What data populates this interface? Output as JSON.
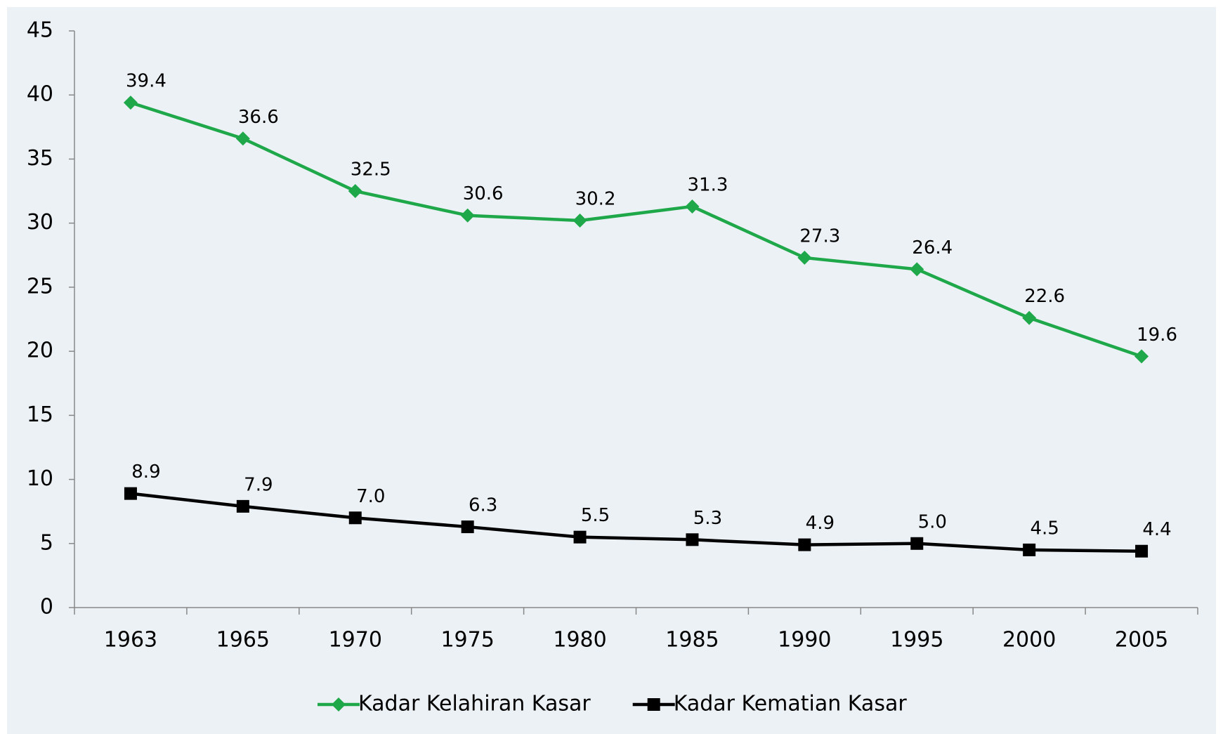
{
  "chart_data": {
    "type": "line",
    "categories": [
      "1963",
      "1965",
      "1970",
      "1975",
      "1980",
      "1985",
      "1990",
      "1995",
      "2000",
      "2005"
    ],
    "series": [
      {
        "name": "Kadar Kelahiran Kasar",
        "color": "#1ea84a",
        "marker": "diamond",
        "values": [
          39.4,
          36.6,
          32.5,
          30.6,
          30.2,
          31.3,
          27.3,
          26.4,
          22.6,
          19.6
        ],
        "value_labels": [
          "39.4",
          "36.6",
          "32.5",
          "30.6",
          "30.2",
          "31.3",
          "27.3",
          "26.4",
          "22.6",
          "19.6"
        ]
      },
      {
        "name": "Kadar Kematian Kasar",
        "color": "#000000",
        "marker": "square",
        "values": [
          8.9,
          7.9,
          7,
          6.3,
          5.5,
          5.3,
          4.9,
          5,
          4.5,
          4.4
        ],
        "value_labels": [
          "8.9",
          "7.9",
          "7.0",
          "6.3",
          "5.5",
          "5.3",
          "4.9",
          "5.0",
          "4.5",
          "4.4"
        ]
      }
    ],
    "ylim": [
      0,
      45
    ],
    "yticks": [
      0,
      5,
      10,
      15,
      20,
      25,
      30,
      35,
      40,
      45
    ],
    "grid": false,
    "legend": "bottom"
  }
}
